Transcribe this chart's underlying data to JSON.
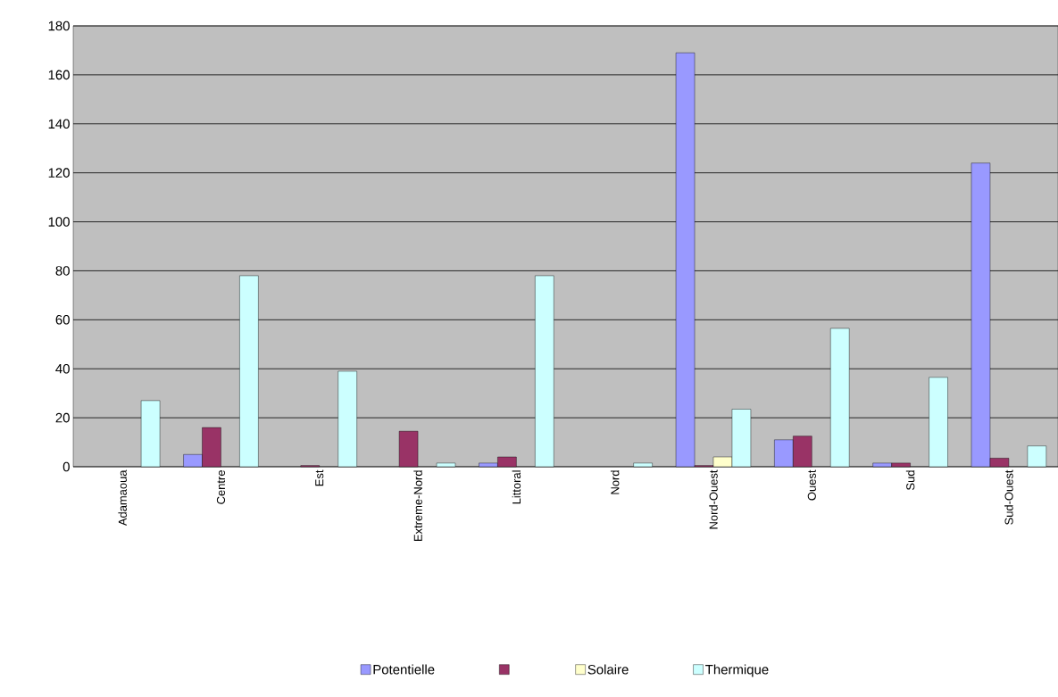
{
  "chart_data": {
    "type": "bar",
    "categories": [
      "Adamaoua",
      "Centre",
      "Est",
      "Extreme-Nord",
      "Littoral",
      "Nord",
      "Nord-Ouest",
      "Ouest",
      "Sud",
      "Sud-Ouest"
    ],
    "series": [
      {
        "name": "Potentielle",
        "color": "#9999ff",
        "values": [
          0,
          5,
          0,
          0,
          1.5,
          0,
          169,
          11,
          1.5,
          124
        ]
      },
      {
        "color": "#993366",
        "values": [
          0,
          16,
          0.5,
          14.5,
          4,
          0,
          0.5,
          12.5,
          1.5,
          3.5
        ]
      },
      {
        "name": "Solaire",
        "color": "#ffffcc",
        "values": [
          0,
          null,
          0,
          0,
          0,
          0,
          4,
          0,
          null,
          0
        ]
      },
      {
        "name": "Thermique",
        "color": "#ccffff",
        "values": [
          27,
          78,
          39,
          1.5,
          78,
          1.5,
          23.5,
          56.5,
          36.5,
          8.5
        ]
      }
    ],
    "ylim": [
      0,
      180
    ],
    "yticks": [
      0,
      20,
      40,
      60,
      80,
      100,
      120,
      140,
      160,
      180
    ],
    "grid": "y",
    "legend": "bottom"
  }
}
